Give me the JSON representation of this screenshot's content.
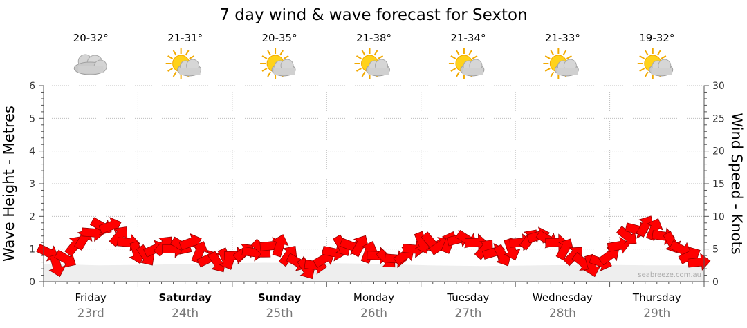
{
  "header": {
    "title": "7 day wind & wave forecast for Sexton"
  },
  "days": [
    {
      "name": "Friday",
      "date": "23rd",
      "temp": "20-32°",
      "icon": "cloudy-icon",
      "bold": false
    },
    {
      "name": "Saturday",
      "date": "24th",
      "temp": "21-31°",
      "icon": "partly-cloudy-icon",
      "bold": true
    },
    {
      "name": "Sunday",
      "date": "25th",
      "temp": "20-35°",
      "icon": "partly-cloudy-icon",
      "bold": true
    },
    {
      "name": "Monday",
      "date": "26th",
      "temp": "21-38°",
      "icon": "partly-cloudy-icon",
      "bold": false
    },
    {
      "name": "Tuesday",
      "date": "27th",
      "temp": "21-34°",
      "icon": "partly-cloudy-icon",
      "bold": false
    },
    {
      "name": "Wednesday",
      "date": "28th",
      "temp": "21-33°",
      "icon": "partly-cloudy-icon",
      "bold": false
    },
    {
      "name": "Thursday",
      "date": "29th",
      "temp": "19-32°",
      "icon": "partly-cloudy-icon",
      "bold": false
    }
  ],
  "watermark": "seabreeze.com.au",
  "chart_data": {
    "type": "area",
    "title": "7 day wind & wave forecast for Sexton",
    "left_axis": {
      "label": "Wave Height - Metres",
      "ticks": [
        0,
        1,
        2,
        3,
        4,
        5,
        6
      ],
      "range": [
        0,
        6
      ]
    },
    "right_axis": {
      "label": "Wind Speed - Knots",
      "ticks": [
        0,
        5,
        10,
        15,
        20,
        25,
        30
      ],
      "range": [
        0,
        30
      ]
    },
    "grid": true,
    "wave_height_m": [
      0.55,
      0.5,
      0.52,
      0.56,
      0.58,
      0.57,
      0.55,
      0.5,
      0.48,
      0.5,
      0.52,
      0.5,
      0.5
    ],
    "wind_speed_kts": [
      4.5,
      2.5,
      3.5,
      5.5,
      6.5,
      7.5,
      8.5,
      8.5,
      7,
      6,
      4.5,
      4,
      5,
      5.5,
      5,
      5.5,
      6,
      4.5,
      3.5,
      3,
      3.5,
      4,
      4.5,
      4.5,
      5,
      5.5,
      5.5,
      4,
      3,
      2,
      2.5,
      3.5,
      4.5,
      5.5,
      5.5,
      5.5,
      4.5,
      4,
      3.5,
      3.5,
      4,
      5,
      6,
      6,
      5.5,
      6,
      6.5,
      6.5,
      6,
      5,
      4.5,
      4,
      5,
      6,
      6.5,
      7,
      6.5,
      6,
      5,
      4,
      3,
      2.5,
      3,
      4,
      5.5,
      7,
      8,
      8.5,
      8,
      7,
      6,
      5,
      4,
      3
    ]
  }
}
